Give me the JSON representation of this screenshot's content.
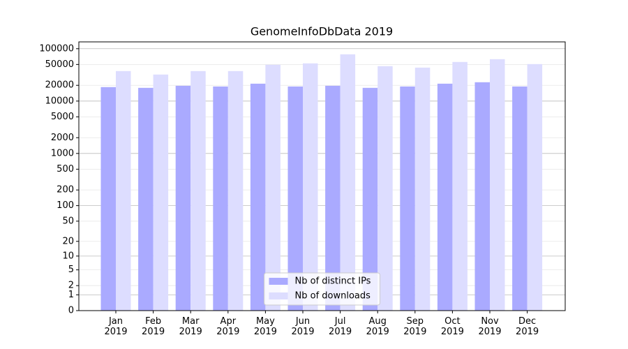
{
  "chart_data": {
    "type": "bar",
    "title": "GenomeInfoDbData 2019",
    "categories": [
      "Jan\n2019",
      "Feb\n2019",
      "Mar\n2019",
      "Apr\n2019",
      "May\n2019",
      "Jun\n2019",
      "Jul\n2019",
      "Aug\n2019",
      "Sep\n2019",
      "Oct\n2019",
      "Nov\n2019",
      "Dec\n2019"
    ],
    "series": [
      {
        "name": "Nb of distinct IPs",
        "color": "#aaaaff",
        "values": [
          18500,
          17900,
          19600,
          19000,
          21500,
          19000,
          19600,
          17900,
          19000,
          21500,
          22900,
          19000
        ]
      },
      {
        "name": "Nb of downloads",
        "color": "#ddddff",
        "values": [
          37400,
          32100,
          37400,
          37400,
          49300,
          52500,
          78200,
          46400,
          43600,
          55800,
          63100,
          50900
        ]
      }
    ],
    "yscale": "log1p",
    "ylim": [
      0,
      135000
    ],
    "yticks": [
      0,
      1,
      2,
      5,
      10,
      20,
      50,
      100,
      200,
      500,
      1000,
      2000,
      5000,
      10000,
      20000,
      50000,
      100000
    ],
    "grid": true,
    "legend": "lower center"
  }
}
